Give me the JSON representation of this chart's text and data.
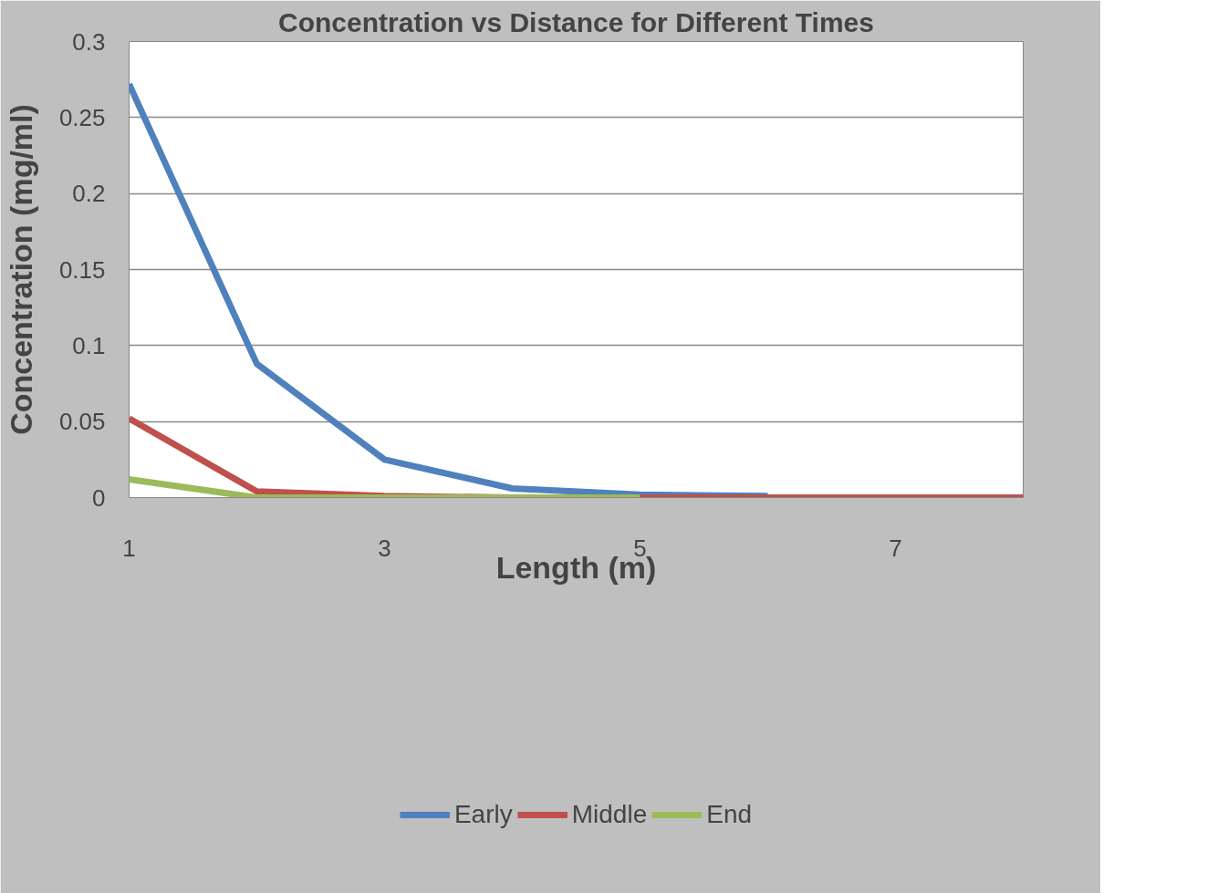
{
  "chart_data": {
    "type": "line",
    "title": "Concentration vs Distance for Different Times",
    "xlabel": "Length (m)",
    "ylabel": "Concentration (mg/ml)",
    "x": [
      1,
      2,
      3,
      4,
      5,
      6,
      7,
      8
    ],
    "series": [
      {
        "name": "Early",
        "color": "#4f81bd",
        "values": [
          0.272,
          0.088,
          0.025,
          0.006,
          0.002,
          0.001,
          null,
          null
        ]
      },
      {
        "name": "Middle",
        "color": "#c0504d",
        "values": [
          0.052,
          0.004,
          0.001,
          0,
          0,
          0,
          0,
          0
        ]
      },
      {
        "name": "End",
        "color": "#9bbb59",
        "values": [
          0.012,
          0,
          0,
          0,
          0,
          null,
          null,
          null
        ]
      }
    ],
    "xlim": [
      1,
      8
    ],
    "xticks": [
      1,
      3,
      5,
      7
    ],
    "ylim": [
      0,
      0.3
    ],
    "yticks": [
      0,
      0.05,
      0.1,
      0.15,
      0.2,
      0.25,
      0.3
    ],
    "grid": "y",
    "legend": "bottom",
    "marker": "none",
    "line_style": "solid"
  }
}
